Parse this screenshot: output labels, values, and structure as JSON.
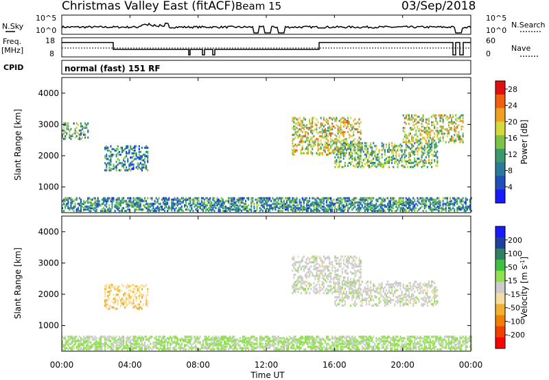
{
  "header": {
    "title": "Christmas Valley East (fitACF)",
    "beam": "Beam 15",
    "date": "03/Sep/2018"
  },
  "noise_panel": {
    "left_label": "N.Sky",
    "right_label": "N.Search",
    "left_ticks": [
      "10^5",
      "10^0"
    ],
    "right_ticks": [
      "10^5",
      "10^0"
    ]
  },
  "freq_panel": {
    "left_label_1": "Freq.",
    "left_label_2": "[MHz]",
    "right_label": "Nave",
    "left_ticks": [
      "18",
      "8"
    ],
    "right_ticks": [
      "60",
      "0"
    ]
  },
  "cpid_panel": {
    "label": "CPID",
    "mode": "normal (fast) 151 RF"
  },
  "x_axis": {
    "label": "Time UT",
    "ticks": [
      "00:00",
      "04:00",
      "08:00",
      "12:00",
      "16:00",
      "20:00",
      "00:00"
    ]
  },
  "colors": {
    "power": [
      "#1a1aff",
      "#1f4fb8",
      "#2b7a9e",
      "#3a9a6e",
      "#7fc24a",
      "#d6d93a",
      "#f0a020",
      "#f06010",
      "#e01010"
    ],
    "velocity": [
      "#ff0000",
      "#f04000",
      "#f08000",
      "#f0b030",
      "#f5dda0",
      "#cccccc",
      "#90e050",
      "#40c040",
      "#308060",
      "#2040a0",
      "#1a1aff"
    ]
  },
  "chart_data": [
    {
      "type": "heatmap",
      "title": "",
      "xlabel": "",
      "ylabel": "Slant Range [km]",
      "x_range_hours": [
        0,
        24
      ],
      "ylim": [
        180,
        4500
      ],
      "yticks": [
        "1000",
        "2000",
        "3000",
        "4000"
      ],
      "colorbar": {
        "label": "Power [dB]",
        "ticks": [
          "4",
          "8",
          "12",
          "16",
          "20",
          "24",
          "28"
        ],
        "range": [
          0,
          30
        ]
      },
      "features": [
        {
          "name": "near-range band",
          "t": [
            0,
            24
          ],
          "range_km": [
            200,
            650
          ],
          "value": 10
        },
        {
          "name": "early echoes",
          "t": [
            0,
            1.5
          ],
          "range_km": [
            2500,
            3000
          ],
          "value": 13
        },
        {
          "name": "dawn patch",
          "t": [
            2.5,
            5
          ],
          "range_km": [
            1500,
            2300
          ],
          "value": 9
        },
        {
          "name": "afternoon arc",
          "t": [
            13.5,
            17.5
          ],
          "range_km": [
            2000,
            3200
          ],
          "value": 18
        },
        {
          "name": "evening band",
          "t": [
            16,
            22
          ],
          "range_km": [
            1600,
            2400
          ],
          "value": 14
        },
        {
          "name": "dusk arc",
          "t": [
            20,
            23.5
          ],
          "range_km": [
            2400,
            3300
          ],
          "value": 17
        }
      ]
    },
    {
      "type": "heatmap",
      "title": "",
      "xlabel": "Time UT",
      "ylabel": "Slant Range [km]",
      "x_range_hours": [
        0,
        24
      ],
      "ylim": [
        180,
        4500
      ],
      "yticks": [
        "1000",
        "2000",
        "3000",
        "4000"
      ],
      "colorbar": {
        "label": "Velocity [m s^-1]",
        "ticks": [
          "200",
          "100",
          "50",
          "15",
          "-15",
          "-50",
          "-100",
          "-200"
        ],
        "range": [
          -250,
          250
        ]
      },
      "features": [
        {
          "name": "near-range band",
          "t": [
            0,
            24
          ],
          "range_km": [
            200,
            650
          ],
          "value": 30
        },
        {
          "name": "dawn patch",
          "t": [
            2.5,
            5
          ],
          "range_km": [
            1500,
            2300
          ],
          "value": -60
        },
        {
          "name": "afternoon arc",
          "t": [
            13.5,
            17.5
          ],
          "range_km": [
            2000,
            3200
          ],
          "value": 0
        },
        {
          "name": "evening band",
          "t": [
            16,
            22
          ],
          "range_km": [
            1600,
            2400
          ],
          "value": 0
        }
      ]
    }
  ]
}
